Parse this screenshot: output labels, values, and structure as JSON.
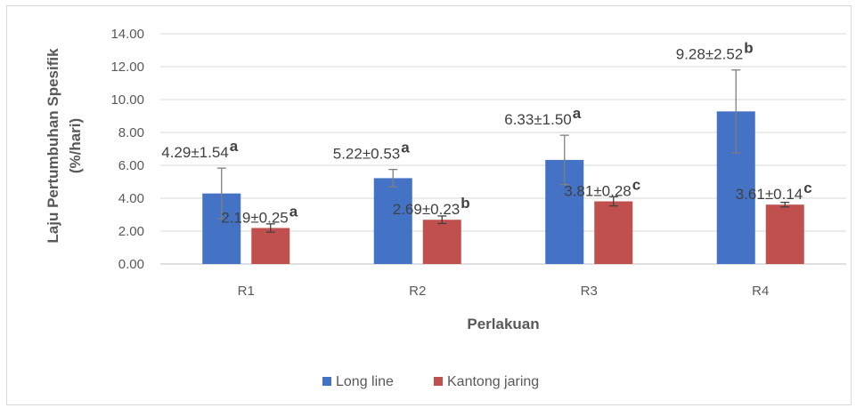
{
  "chart_data": {
    "type": "bar",
    "categories": [
      "R1",
      "R2",
      "R3",
      "R4"
    ],
    "series": [
      {
        "name": "Long line",
        "color": "#4472c4",
        "values": [
          4.29,
          5.22,
          6.33,
          9.28
        ],
        "errors": [
          1.54,
          0.53,
          1.5,
          2.52
        ],
        "labels": [
          "4.29±1.54",
          "5.22±0.53",
          "6.33±1.50",
          "9.28±2.52"
        ],
        "letters": [
          "a",
          "a",
          "a",
          "b"
        ]
      },
      {
        "name": "Kantong jaring",
        "color": "#c0504d",
        "values": [
          2.19,
          2.69,
          3.81,
          3.61
        ],
        "errors": [
          0.25,
          0.23,
          0.28,
          0.14
        ],
        "labels": [
          "2.19±0.25",
          "2.69±0.23",
          "3.81±0.28",
          "3.61±0.14"
        ],
        "letters": [
          "a",
          "b",
          "c",
          "c"
        ]
      }
    ],
    "yticks": [
      "0.00",
      "2.00",
      "4.00",
      "6.00",
      "8.00",
      "10.00",
      "12.00",
      "14.00"
    ],
    "ylim": [
      0,
      14
    ],
    "xlabel": "Perlakuan",
    "ylabel_line1": "Laju Pertumbuhan Spesifik",
    "ylabel_line2": "(%/hari)",
    "grid": true,
    "legend_position": "bottom"
  }
}
